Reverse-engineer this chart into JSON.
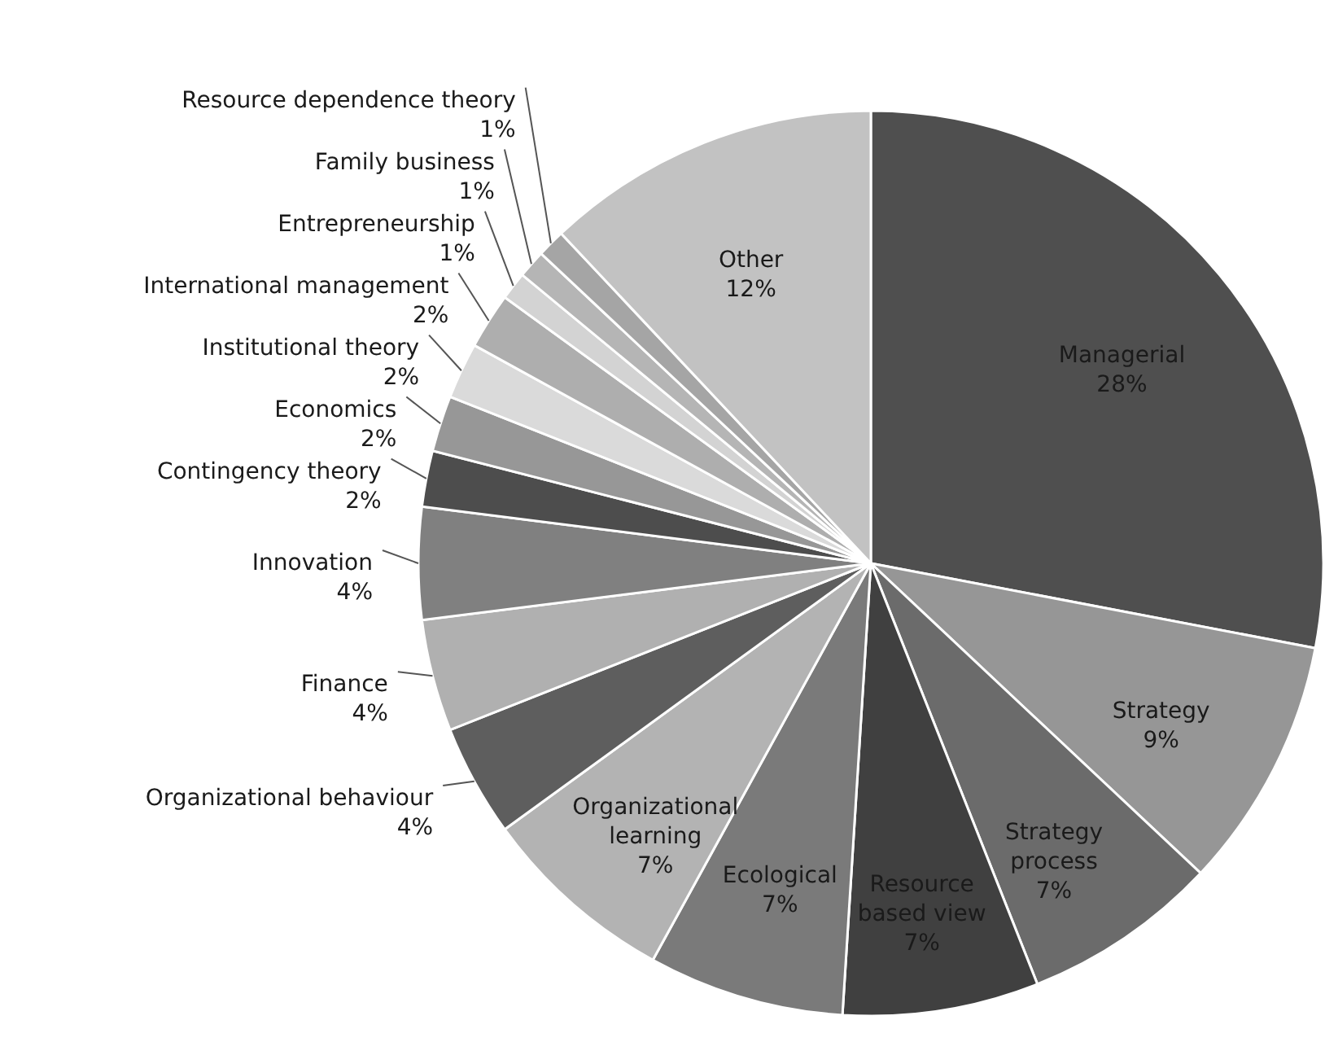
{
  "chart_data": {
    "type": "pie",
    "categories": [
      "Managerial",
      "Strategy",
      "Strategy process",
      "Resource based view",
      "Ecological",
      "Organizational learning",
      "Organizational behaviour",
      "Finance",
      "Innovation",
      "Contingency theory",
      "Economics",
      "Institutional theory",
      "International management",
      "Entrepreneurship",
      "Family business",
      "Resource dependence theory",
      "Other"
    ],
    "values": [
      28,
      9,
      7,
      7,
      7,
      7,
      4,
      4,
      4,
      2,
      2,
      2,
      2,
      1,
      1,
      1,
      12
    ],
    "value_labels": [
      "28%",
      "9%",
      "7%",
      "7%",
      "7%",
      "7%",
      "4%",
      "4%",
      "4%",
      "2%",
      "2%",
      "2%",
      "2%",
      "1%",
      "1%",
      "1%",
      "12%"
    ],
    "colors": [
      "#4f4f4f",
      "#969696",
      "#6b6b6b",
      "#404040",
      "#7a7a7a",
      "#b3b3b3",
      "#5e5e5e",
      "#b0b0b0",
      "#808080",
      "#4d4d4d",
      "#979797",
      "#dadada",
      "#aeaeae",
      "#d3d3d3",
      "#b5b5b5",
      "#a5a5a5",
      "#c2c2c2"
    ]
  }
}
